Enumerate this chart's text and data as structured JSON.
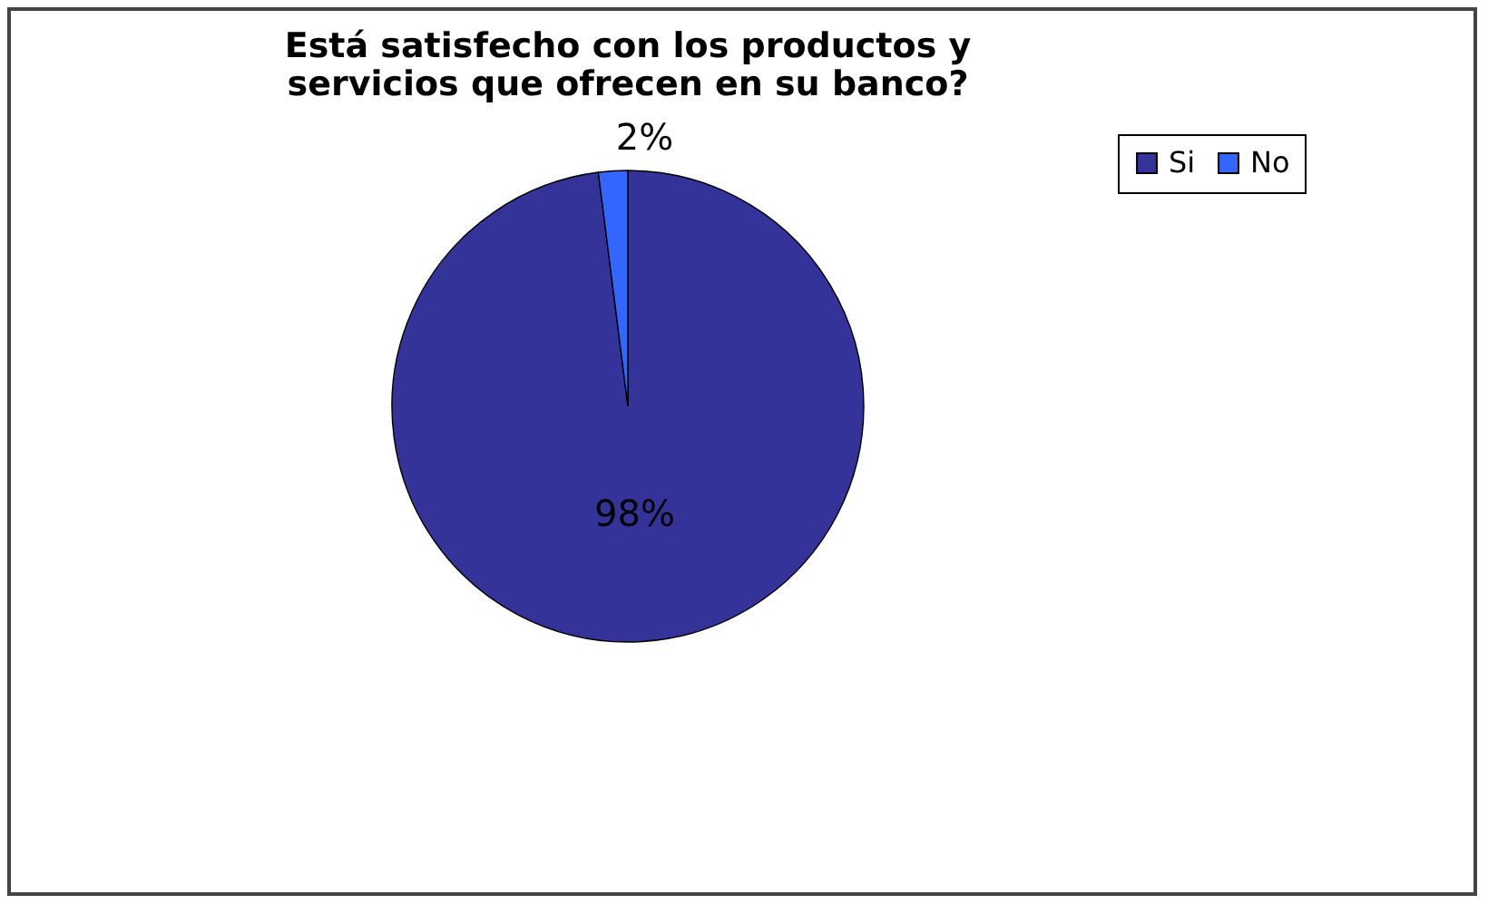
{
  "chart_data": {
    "type": "pie",
    "title": "Está satisfecho con los productos y servicios que ofrecen en su banco?",
    "categories": [
      "Si",
      "No"
    ],
    "values": [
      98,
      2
    ],
    "colors": [
      "#333399",
      "#3366ff"
    ],
    "value_labels": [
      "98%",
      "2%"
    ],
    "legend": "right"
  }
}
